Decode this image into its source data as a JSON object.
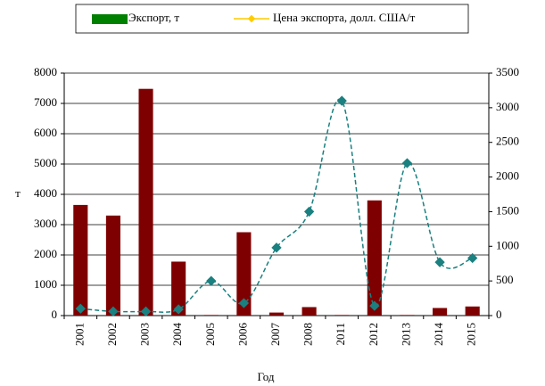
{
  "chart_data": {
    "type": "bar_line",
    "categories": [
      "2001",
      "2002",
      "2003",
      "2004",
      "2005",
      "2006",
      "2007",
      "2008",
      "2011",
      "2012",
      "2013",
      "2014",
      "2015"
    ],
    "series": [
      {
        "name": "Экспорт, т",
        "color": "#7f0000",
        "legend_color": "#008000",
        "type": "bar",
        "values": [
          3650,
          3300,
          7480,
          1780,
          20,
          2750,
          100,
          280,
          20,
          3800,
          20,
          250,
          300
        ]
      },
      {
        "name": "Цена экспорта, долл. США/т",
        "color": "#1a8080",
        "legend_color": "#ffcc00",
        "type": "line",
        "axis": "y2",
        "values": [
          100,
          60,
          60,
          90,
          500,
          180,
          980,
          1500,
          3100,
          140,
          2200,
          770,
          830
        ]
      }
    ],
    "ylabel": "т",
    "xlabel": "Год",
    "ylim": [
      0,
      8000
    ],
    "yticks": [
      0,
      1000,
      2000,
      3000,
      4000,
      5000,
      6000,
      7000,
      8000
    ],
    "y2lim": [
      0,
      3500
    ],
    "y2ticks": [
      0,
      500,
      1000,
      1500,
      2000,
      2500,
      3000,
      3500
    ],
    "grid": true
  }
}
